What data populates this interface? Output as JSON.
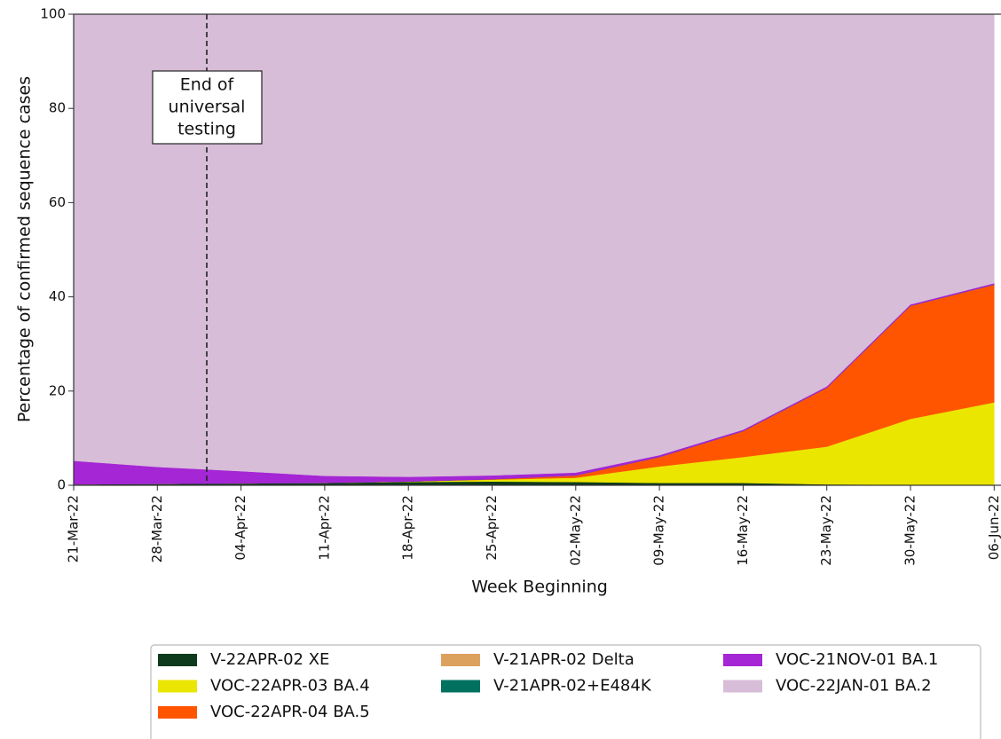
{
  "chart_data": {
    "type": "stacked_area",
    "ylabel": "Percentage of confirmed sequence cases",
    "xlabel": "Week Beginning",
    "categories": [
      "21-Mar-22",
      "28-Mar-22",
      "04-Apr-22",
      "11-Apr-22",
      "18-Apr-22",
      "25-Apr-22",
      "02-May-22",
      "09-May-22",
      "16-May-22",
      "23-May-22",
      "30-May-22",
      "06-Jun-22"
    ],
    "ylim": [
      0,
      100
    ],
    "yticks": [
      0,
      20,
      40,
      60,
      80,
      100
    ],
    "annotation": [
      "End of",
      "universal",
      "testing"
    ],
    "series": [
      {
        "name": "V-22APR-02 XE",
        "color": "#0d3b1c",
        "values": [
          0.2,
          0.3,
          0.4,
          0.5,
          0.7,
          0.8,
          0.7,
          0.5,
          0.5,
          0.2,
          0.1,
          0.1
        ]
      },
      {
        "name": "VOC-22APR-03 BA.4",
        "color": "#ebe600",
        "values": [
          0,
          0,
          0,
          0,
          0.1,
          0.4,
          0.9,
          3.5,
          5.5,
          8,
          14,
          17.5
        ]
      },
      {
        "name": "VOC-22APR-04 BA.5",
        "color": "#ff5500",
        "values": [
          0,
          0,
          0,
          0,
          0,
          0.1,
          0.5,
          2,
          5.5,
          12.5,
          24,
          25
        ]
      },
      {
        "name": "V-21APR-02 Delta",
        "color": "#dda15e",
        "values": [
          0,
          0,
          0,
          0,
          0,
          0,
          0,
          0,
          0,
          0,
          0,
          0
        ]
      },
      {
        "name": "V-21APR-02+E484K",
        "color": "#00705f",
        "values": [
          0,
          0,
          0,
          0,
          0,
          0,
          0,
          0,
          0,
          0,
          0,
          0
        ]
      },
      {
        "name": "VOC-21NOV-01 BA.1",
        "color": "#a526d4",
        "values": [
          5,
          3.6,
          2.6,
          1.5,
          1.0,
          0.8,
          0.6,
          0.4,
          0.3,
          0.3,
          0.3,
          0.3
        ]
      },
      {
        "name": "VOC-22JAN-01 BA.2",
        "color": "#d7bdd8",
        "values": [
          94.8,
          96.1,
          97.0,
          98.0,
          98.2,
          97.9,
          97.3,
          93.6,
          88.2,
          79.0,
          61.6,
          57.1
        ]
      }
    ]
  }
}
